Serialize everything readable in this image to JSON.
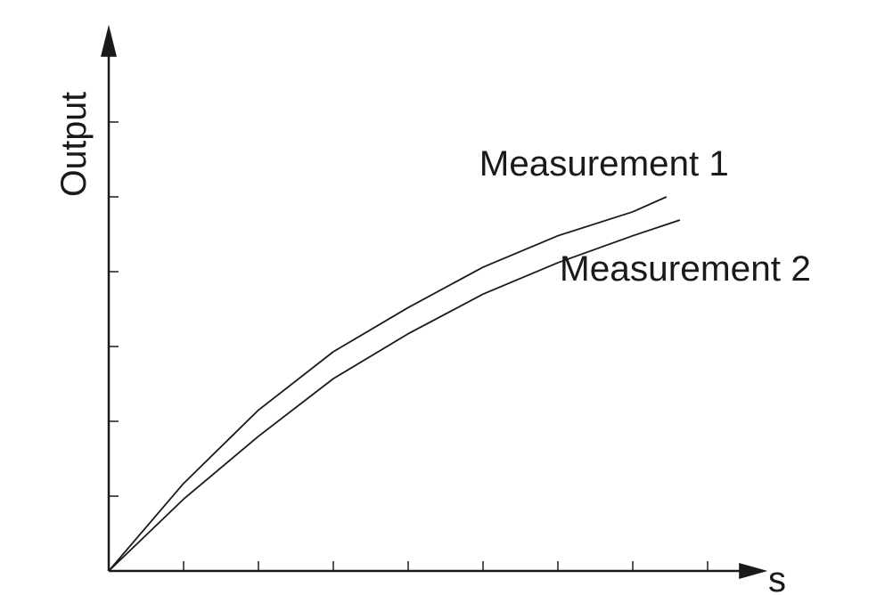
{
  "chart_data": {
    "type": "line",
    "x_label": "s",
    "y_label": "Output",
    "xlim": [
      0,
      8.8
    ],
    "ylim": [
      0,
      7.3
    ],
    "xticks": [
      1,
      2,
      3,
      4,
      5,
      6,
      7,
      8
    ],
    "yticks": [
      1,
      2,
      3,
      4,
      5,
      6
    ],
    "series": [
      {
        "name": "Measurement 1",
        "color": "#1a1a1a",
        "x": [
          0,
          1,
          2,
          3,
          4,
          5,
          6,
          7,
          7.45
        ],
        "values": [
          0,
          1.17,
          2.15,
          2.93,
          3.52,
          4.06,
          4.48,
          4.8,
          5.0
        ]
      },
      {
        "name": "Measurement 2",
        "color": "#1a1a1a",
        "x": [
          0,
          1,
          2,
          3,
          4,
          5,
          6,
          7,
          7.63
        ],
        "values": [
          0,
          0.96,
          1.8,
          2.57,
          3.17,
          3.7,
          4.12,
          4.48,
          4.69
        ]
      }
    ]
  }
}
